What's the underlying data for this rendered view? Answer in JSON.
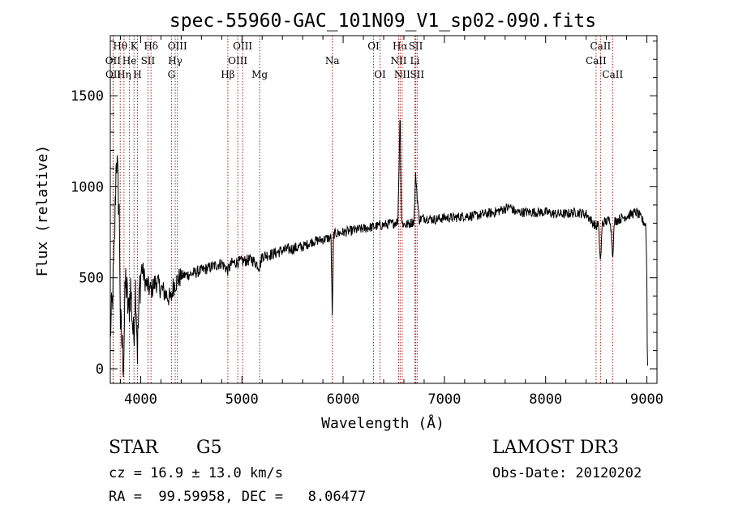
{
  "chart_data": {
    "type": "line",
    "title": "spec-55960-GAC_101N09_V1_sp02-090.fits",
    "xlabel": "Wavelength (Å)",
    "ylabel": "Flux (relative)",
    "xlim": [
      3700,
      9100
    ],
    "ylim": [
      -80,
      1830
    ],
    "xticks": [
      4000,
      5000,
      6000,
      7000,
      8000,
      9000
    ],
    "yticks": [
      0,
      500,
      1000,
      1500
    ],
    "grid": false,
    "line_color": "#000000",
    "marker_color": "#aa2222",
    "anchors": [
      [
        3700,
        200
      ],
      [
        3720,
        350
      ],
      [
        3740,
        650
      ],
      [
        3760,
        1200
      ],
      [
        3790,
        820
      ],
      [
        3800,
        250
      ],
      [
        3830,
        30
      ],
      [
        3850,
        500
      ],
      [
        3880,
        300
      ],
      [
        3900,
        450
      ],
      [
        3930,
        150
      ],
      [
        3950,
        480
      ],
      [
        3968,
        100
      ],
      [
        3990,
        450
      ],
      [
        4010,
        560
      ],
      [
        4050,
        470
      ],
      [
        4100,
        430
      ],
      [
        4150,
        480
      ],
      [
        4200,
        440
      ],
      [
        4250,
        410
      ],
      [
        4300,
        380
      ],
      [
        4320,
        450
      ],
      [
        4340,
        470
      ],
      [
        4400,
        510
      ],
      [
        4500,
        520
      ],
      [
        4600,
        540
      ],
      [
        4700,
        560
      ],
      [
        4800,
        580
      ],
      [
        4861,
        540
      ],
      [
        4900,
        580
      ],
      [
        5000,
        590
      ],
      [
        5100,
        600
      ],
      [
        5175,
        560
      ],
      [
        5200,
        620
      ],
      [
        5300,
        630
      ],
      [
        5400,
        650
      ],
      [
        5500,
        660
      ],
      [
        5600,
        670
      ],
      [
        5700,
        700
      ],
      [
        5800,
        710
      ],
      [
        5880,
        720
      ],
      [
        5893,
        270
      ],
      [
        5905,
        740
      ],
      [
        6000,
        750
      ],
      [
        6100,
        760
      ],
      [
        6200,
        770
      ],
      [
        6300,
        780
      ],
      [
        6400,
        790
      ],
      [
        6500,
        800
      ],
      [
        6540,
        810
      ],
      [
        6555,
        1200
      ],
      [
        6563,
        1450
      ],
      [
        6570,
        1000
      ],
      [
        6580,
        800
      ],
      [
        6620,
        790
      ],
      [
        6700,
        810
      ],
      [
        6717,
        1070
      ],
      [
        6731,
        950
      ],
      [
        6750,
        820
      ],
      [
        6800,
        830
      ],
      [
        6900,
        820
      ],
      [
        7000,
        830
      ],
      [
        7100,
        830
      ],
      [
        7200,
        840
      ],
      [
        7300,
        840
      ],
      [
        7400,
        850
      ],
      [
        7500,
        860
      ],
      [
        7600,
        880
      ],
      [
        7650,
        890
      ],
      [
        7700,
        860
      ],
      [
        7800,
        860
      ],
      [
        7900,
        860
      ],
      [
        8000,
        860
      ],
      [
        8100,
        850
      ],
      [
        8200,
        850
      ],
      [
        8300,
        860
      ],
      [
        8400,
        850
      ],
      [
        8498,
        780
      ],
      [
        8520,
        800
      ],
      [
        8542,
        580
      ],
      [
        8560,
        800
      ],
      [
        8640,
        820
      ],
      [
        8662,
        620
      ],
      [
        8680,
        810
      ],
      [
        8800,
        840
      ],
      [
        8900,
        860
      ],
      [
        8950,
        820
      ],
      [
        8990,
        790
      ],
      [
        9000,
        500
      ],
      [
        9005,
        10
      ],
      [
        9010,
        30
      ]
    ],
    "lines": [
      {
        "label": "Hθ",
        "x": 3798,
        "row": 1
      },
      {
        "label": "OII",
        "x": 3727,
        "row": 2
      },
      {
        "label": "OII",
        "x": 3729,
        "row": 3
      },
      {
        "label": "K",
        "x": 3934,
        "row": 1
      },
      {
        "label": "He",
        "x": 3889,
        "row": 2
      },
      {
        "label": "Hη",
        "x": 3835,
        "row": 3
      },
      {
        "label": "Hδ",
        "x": 4102,
        "row": 1
      },
      {
        "label": "SII",
        "x": 4072,
        "row": 2
      },
      {
        "label": "H",
        "x": 3968,
        "row": 3
      },
      {
        "label": "OIII",
        "x": 4363,
        "row": 1
      },
      {
        "label": "Hγ",
        "x": 4341,
        "row": 2
      },
      {
        "label": "G",
        "x": 4304,
        "row": 3
      },
      {
        "label": "OIII",
        "x": 5007,
        "row": 1
      },
      {
        "label": "OIII",
        "x": 4959,
        "row": 2
      },
      {
        "label": "Hβ",
        "x": 4861,
        "row": 3
      },
      {
        "label": "Mg",
        "x": 5175,
        "row": 3
      },
      {
        "label": "Na",
        "x": 5893,
        "row": 2
      },
      {
        "label": "OI",
        "x": 6300,
        "row": 1
      },
      {
        "label": "OI",
        "x": 6364,
        "row": 3
      },
      {
        "label": "Hα",
        "x": 6563,
        "row": 1
      },
      {
        "label": "NII",
        "x": 6548,
        "row": 2
      },
      {
        "label": "NII",
        "x": 6583,
        "row": 3
      },
      {
        "label": "SII",
        "x": 6717,
        "row": 1
      },
      {
        "label": "Li",
        "x": 6708,
        "row": 2
      },
      {
        "label": "SII",
        "x": 6731,
        "row": 3
      },
      {
        "label": "CaII",
        "x": 8542,
        "row": 1
      },
      {
        "label": "CaII",
        "x": 8498,
        "row": 2
      },
      {
        "label": "CaII",
        "x": 8662,
        "row": 3
      }
    ]
  },
  "info": {
    "object_type": "STAR",
    "subclass": "G5",
    "survey": "LAMOST DR3",
    "redshift": "cz = 16.9 ± 13.0 km/s",
    "obs_date": "Obs-Date: 20120202",
    "coords": "RA =  99.59958, DEC =   8.06477"
  }
}
